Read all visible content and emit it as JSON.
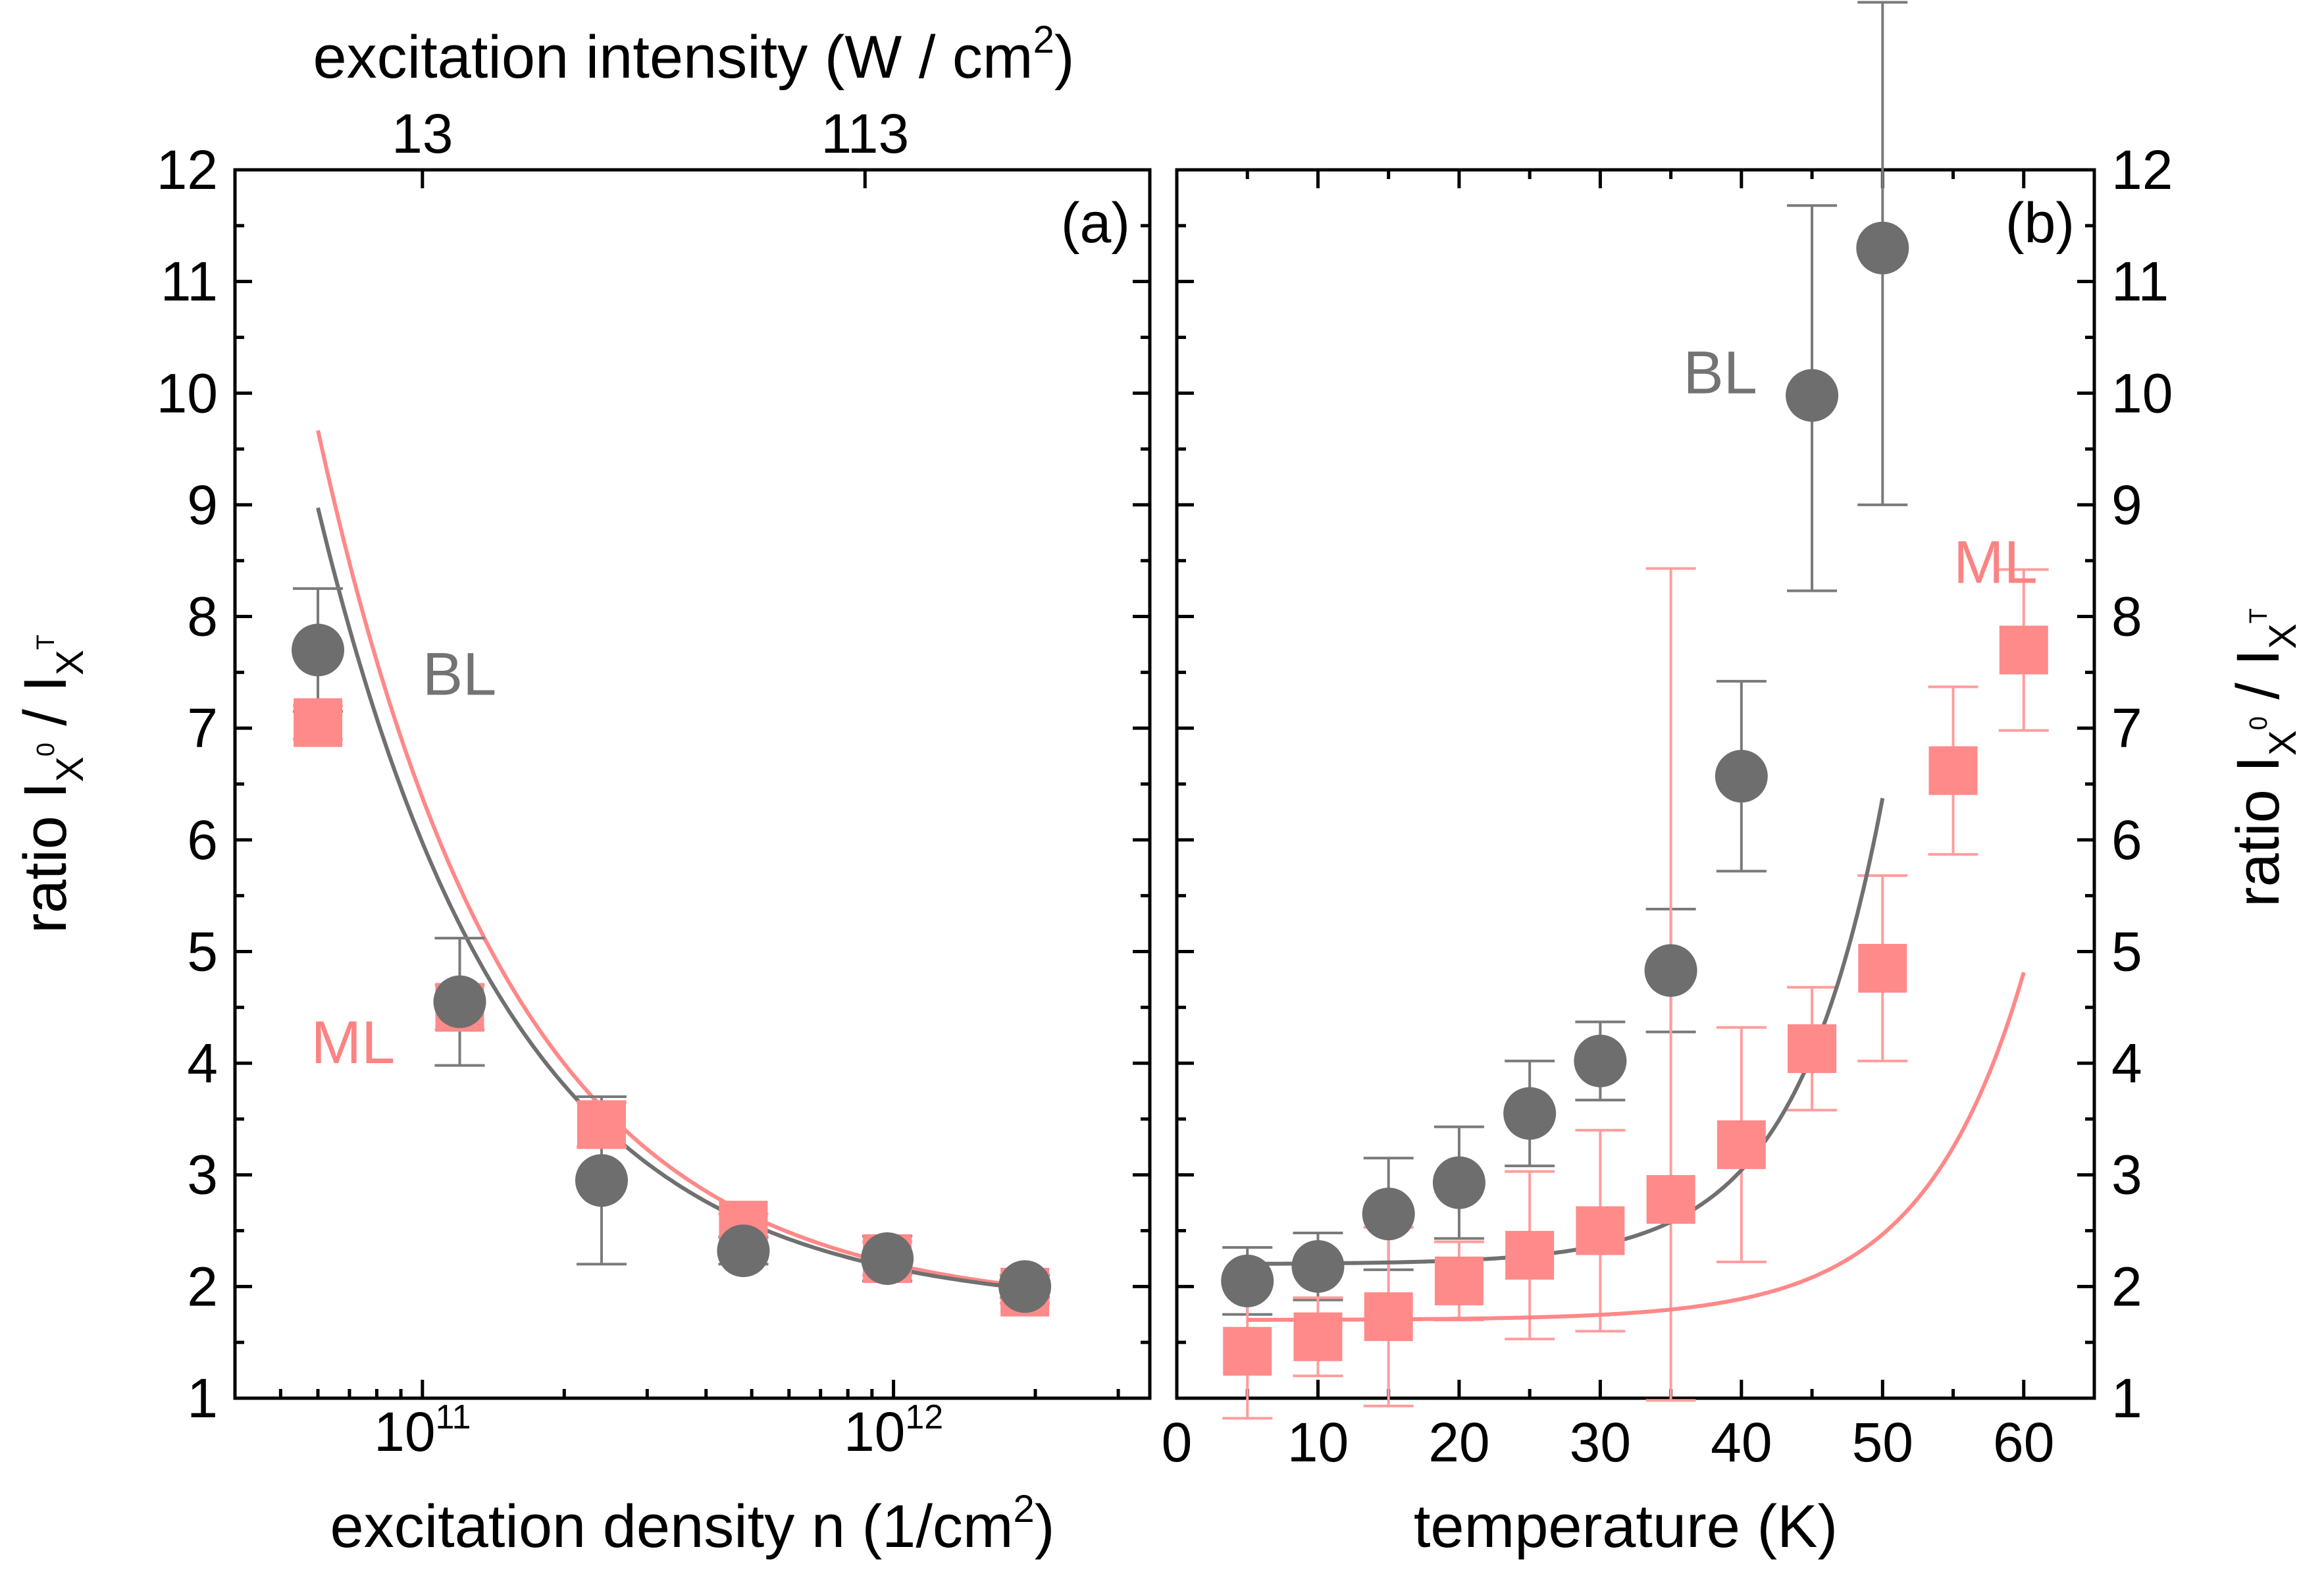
{
  "colors": {
    "bl": "#737373",
    "ml": "#fc8383",
    "bl_marker": "#6e6e6e",
    "ml_marker": "#ff8a8a",
    "bl_errorbar": "#7a7a7a",
    "ml_errorbar": "#ff9d9d",
    "bl_fit": "#707070",
    "ml_fit": "#ff8888"
  },
  "chart_data": [
    {
      "panel": "(a)",
      "type": "scatter",
      "x_scale": "log",
      "xlabel_parts": {
        "main": "excitation density n (1/cm",
        "sup": "2",
        "end": ")"
      },
      "top_xlabel_parts": {
        "main": "excitation intensity (W / cm",
        "sup": "2",
        "end": ")"
      },
      "ylabel_parts": {
        "pre": "ratio I",
        "sub1": "X",
        "sup1": "0",
        "mid": " / I",
        "sub2": "X",
        "sup2": "T"
      },
      "xlim": [
        40000000000.0,
        3500000000000.0
      ],
      "ylim": [
        1,
        12
      ],
      "x_major_ticks": [
        {
          "value": 100000000000.0,
          "base": "10",
          "exp": "11"
        },
        {
          "value": 1000000000000.0,
          "base": "10",
          "exp": "12"
        }
      ],
      "top_ticks": [
        {
          "value": 100000000000.0,
          "label": "13"
        },
        {
          "value": 870000000000.0,
          "label": "113"
        }
      ],
      "y_ticks": [
        "1",
        "2",
        "3",
        "4",
        "5",
        "6",
        "7",
        "8",
        "9",
        "10",
        "11",
        "12"
      ],
      "series": [
        {
          "name": "BL",
          "color_key": "bl",
          "marker": "circle",
          "x": [
            60000000000.0,
            120000000000.0,
            240000000000.0,
            480000000000.0,
            970000000000.0,
            1900000000000.0
          ],
          "y": [
            7.7,
            4.55,
            2.95,
            2.32,
            2.25,
            2.0
          ],
          "err_lo": [
            0.55,
            0.57,
            0.75,
            0.12,
            0.2,
            0.1
          ],
          "err_hi": [
            0.55,
            0.57,
            0.75,
            0.12,
            0.2,
            0.1
          ],
          "fit": {
            "asymptote": 1.8,
            "coef": 385000000000.0,
            "exponent": 1.06
          }
        },
        {
          "name": "ML",
          "color_key": "ml",
          "marker": "square",
          "x": [
            60000000000.0,
            120000000000.0,
            240000000000.0,
            480000000000.0,
            970000000000.0,
            1900000000000.0
          ],
          "y": [
            7.05,
            4.5,
            3.45,
            2.55,
            2.25,
            1.95
          ],
          "err_lo": [
            0.15,
            0.2,
            0.2,
            0.1,
            0.15,
            0.1
          ],
          "err_hi": [
            0.15,
            0.2,
            0.2,
            0.1,
            0.15,
            0.1
          ],
          "fit": {
            "asymptote": 1.8,
            "coef": 420000000000.0,
            "exponent": 1.06
          }
        }
      ],
      "annotations": [
        {
          "text": "BL",
          "color_key": "bl",
          "x": 100000000000.0,
          "y": 7.3
        },
        {
          "text": "ML",
          "color_key": "ml",
          "x": 58000000000.0,
          "y": 4.0
        }
      ]
    },
    {
      "panel": "(b)",
      "type": "scatter",
      "x_scale": "linear",
      "xlabel": "temperature (K)",
      "ylabel_parts": {
        "pre": "ratio I",
        "sub1": "X",
        "sup1": "0",
        "mid": " / I",
        "sub2": "X",
        "sup2": "T"
      },
      "xlim": [
        0,
        65
      ],
      "ylim": [
        1,
        12
      ],
      "x_ticks": [
        "0",
        "10",
        "20",
        "30",
        "40",
        "50",
        "60"
      ],
      "y_ticks": [
        "1",
        "2",
        "3",
        "4",
        "5",
        "6",
        "7",
        "8",
        "9",
        "10",
        "11",
        "12"
      ],
      "series": [
        {
          "name": "BL",
          "color_key": "bl",
          "marker": "circle",
          "x": [
            5,
            10,
            15,
            20,
            25,
            30,
            35,
            40,
            45,
            50
          ],
          "y": [
            2.05,
            2.18,
            2.65,
            2.93,
            3.55,
            4.02,
            4.83,
            6.57,
            9.98,
            11.3
          ],
          "err_lo": [
            0.3,
            0.3,
            0.5,
            0.5,
            0.47,
            0.35,
            0.55,
            0.85,
            1.75,
            2.3
          ],
          "err_hi": [
            0.3,
            0.3,
            0.5,
            0.5,
            0.47,
            0.35,
            0.55,
            0.85,
            1.7,
            2.2
          ],
          "fit": {
            "base": 2.2,
            "a": 0.0014,
            "b": 0.16
          }
        },
        {
          "name": "ML",
          "color_key": "ml",
          "marker": "square",
          "x": [
            5,
            10,
            15,
            20,
            25,
            30,
            35,
            40,
            45,
            50,
            55,
            60
          ],
          "y": [
            1.42,
            1.55,
            1.73,
            2.05,
            2.28,
            2.5,
            2.78,
            3.27,
            4.13,
            4.85,
            6.62,
            7.7
          ],
          "err_lo": [
            0.6,
            0.35,
            0.8,
            0.35,
            0.75,
            0.9,
            1.8,
            1.05,
            0.55,
            0.83,
            0.75,
            0.72
          ],
          "err_hi": [
            0.6,
            0.35,
            0.8,
            0.35,
            0.75,
            0.9,
            5.65,
            1.05,
            0.55,
            0.83,
            0.75,
            0.72
          ],
          "fit": {
            "base": 1.7,
            "a": 0.0007,
            "b": 0.14
          }
        }
      ],
      "annotations": [
        {
          "text": "BL",
          "color_key": "bl",
          "x": 38.5,
          "y": 10.0
        },
        {
          "text": "ML",
          "color_key": "ml",
          "x": 58.0,
          "y": 8.3
        }
      ]
    }
  ]
}
